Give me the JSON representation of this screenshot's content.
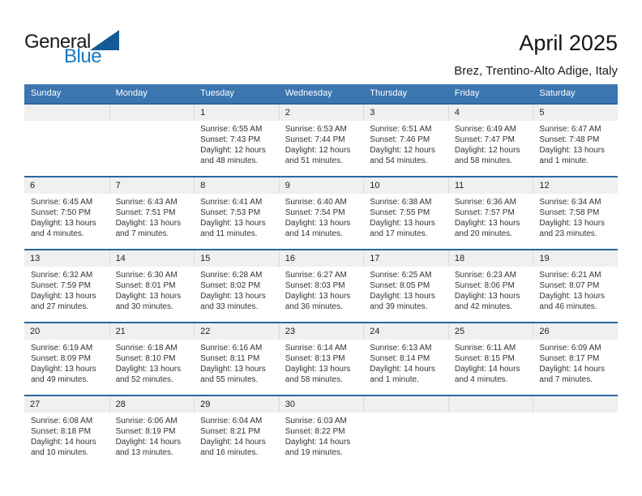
{
  "logo": {
    "general": "General",
    "blue": "Blue"
  },
  "header": {
    "title": "April 2025",
    "subtitle": "Brez, Trentino-Alto Adige, Italy"
  },
  "weekdays": [
    "Sunday",
    "Monday",
    "Tuesday",
    "Wednesday",
    "Thursday",
    "Friday",
    "Saturday"
  ],
  "colors": {
    "header_bg": "#3b76b1",
    "header_text": "#ffffff",
    "week_divider": "#2a67a4",
    "day_band_bg": "#f0f0f0",
    "body_text": "#333333",
    "logo_blue": "#1878be",
    "logo_triangle": "#145a96"
  },
  "weeks": [
    [
      null,
      null,
      {
        "day": "1",
        "lines": [
          "Sunrise: 6:55 AM",
          "Sunset: 7:43 PM",
          "Daylight: 12 hours",
          "and 48 minutes."
        ]
      },
      {
        "day": "2",
        "lines": [
          "Sunrise: 6:53 AM",
          "Sunset: 7:44 PM",
          "Daylight: 12 hours",
          "and 51 minutes."
        ]
      },
      {
        "day": "3",
        "lines": [
          "Sunrise: 6:51 AM",
          "Sunset: 7:46 PM",
          "Daylight: 12 hours",
          "and 54 minutes."
        ]
      },
      {
        "day": "4",
        "lines": [
          "Sunrise: 6:49 AM",
          "Sunset: 7:47 PM",
          "Daylight: 12 hours",
          "and 58 minutes."
        ]
      },
      {
        "day": "5",
        "lines": [
          "Sunrise: 6:47 AM",
          "Sunset: 7:48 PM",
          "Daylight: 13 hours",
          "and 1 minute."
        ]
      }
    ],
    [
      {
        "day": "6",
        "lines": [
          "Sunrise: 6:45 AM",
          "Sunset: 7:50 PM",
          "Daylight: 13 hours",
          "and 4 minutes."
        ]
      },
      {
        "day": "7",
        "lines": [
          "Sunrise: 6:43 AM",
          "Sunset: 7:51 PM",
          "Daylight: 13 hours",
          "and 7 minutes."
        ]
      },
      {
        "day": "8",
        "lines": [
          "Sunrise: 6:41 AM",
          "Sunset: 7:53 PM",
          "Daylight: 13 hours",
          "and 11 minutes."
        ]
      },
      {
        "day": "9",
        "lines": [
          "Sunrise: 6:40 AM",
          "Sunset: 7:54 PM",
          "Daylight: 13 hours",
          "and 14 minutes."
        ]
      },
      {
        "day": "10",
        "lines": [
          "Sunrise: 6:38 AM",
          "Sunset: 7:55 PM",
          "Daylight: 13 hours",
          "and 17 minutes."
        ]
      },
      {
        "day": "11",
        "lines": [
          "Sunrise: 6:36 AM",
          "Sunset: 7:57 PM",
          "Daylight: 13 hours",
          "and 20 minutes."
        ]
      },
      {
        "day": "12",
        "lines": [
          "Sunrise: 6:34 AM",
          "Sunset: 7:58 PM",
          "Daylight: 13 hours",
          "and 23 minutes."
        ]
      }
    ],
    [
      {
        "day": "13",
        "lines": [
          "Sunrise: 6:32 AM",
          "Sunset: 7:59 PM",
          "Daylight: 13 hours",
          "and 27 minutes."
        ]
      },
      {
        "day": "14",
        "lines": [
          "Sunrise: 6:30 AM",
          "Sunset: 8:01 PM",
          "Daylight: 13 hours",
          "and 30 minutes."
        ]
      },
      {
        "day": "15",
        "lines": [
          "Sunrise: 6:28 AM",
          "Sunset: 8:02 PM",
          "Daylight: 13 hours",
          "and 33 minutes."
        ]
      },
      {
        "day": "16",
        "lines": [
          "Sunrise: 6:27 AM",
          "Sunset: 8:03 PM",
          "Daylight: 13 hours",
          "and 36 minutes."
        ]
      },
      {
        "day": "17",
        "lines": [
          "Sunrise: 6:25 AM",
          "Sunset: 8:05 PM",
          "Daylight: 13 hours",
          "and 39 minutes."
        ]
      },
      {
        "day": "18",
        "lines": [
          "Sunrise: 6:23 AM",
          "Sunset: 8:06 PM",
          "Daylight: 13 hours",
          "and 42 minutes."
        ]
      },
      {
        "day": "19",
        "lines": [
          "Sunrise: 6:21 AM",
          "Sunset: 8:07 PM",
          "Daylight: 13 hours",
          "and 46 minutes."
        ]
      }
    ],
    [
      {
        "day": "20",
        "lines": [
          "Sunrise: 6:19 AM",
          "Sunset: 8:09 PM",
          "Daylight: 13 hours",
          "and 49 minutes."
        ]
      },
      {
        "day": "21",
        "lines": [
          "Sunrise: 6:18 AM",
          "Sunset: 8:10 PM",
          "Daylight: 13 hours",
          "and 52 minutes."
        ]
      },
      {
        "day": "22",
        "lines": [
          "Sunrise: 6:16 AM",
          "Sunset: 8:11 PM",
          "Daylight: 13 hours",
          "and 55 minutes."
        ]
      },
      {
        "day": "23",
        "lines": [
          "Sunrise: 6:14 AM",
          "Sunset: 8:13 PM",
          "Daylight: 13 hours",
          "and 58 minutes."
        ]
      },
      {
        "day": "24",
        "lines": [
          "Sunrise: 6:13 AM",
          "Sunset: 8:14 PM",
          "Daylight: 14 hours",
          "and 1 minute."
        ]
      },
      {
        "day": "25",
        "lines": [
          "Sunrise: 6:11 AM",
          "Sunset: 8:15 PM",
          "Daylight: 14 hours",
          "and 4 minutes."
        ]
      },
      {
        "day": "26",
        "lines": [
          "Sunrise: 6:09 AM",
          "Sunset: 8:17 PM",
          "Daylight: 14 hours",
          "and 7 minutes."
        ]
      }
    ],
    [
      {
        "day": "27",
        "lines": [
          "Sunrise: 6:08 AM",
          "Sunset: 8:18 PM",
          "Daylight: 14 hours",
          "and 10 minutes."
        ]
      },
      {
        "day": "28",
        "lines": [
          "Sunrise: 6:06 AM",
          "Sunset: 8:19 PM",
          "Daylight: 14 hours",
          "and 13 minutes."
        ]
      },
      {
        "day": "29",
        "lines": [
          "Sunrise: 6:04 AM",
          "Sunset: 8:21 PM",
          "Daylight: 14 hours",
          "and 16 minutes."
        ]
      },
      {
        "day": "30",
        "lines": [
          "Sunrise: 6:03 AM",
          "Sunset: 8:22 PM",
          "Daylight: 14 hours",
          "and 19 minutes."
        ]
      },
      null,
      null,
      null
    ]
  ]
}
